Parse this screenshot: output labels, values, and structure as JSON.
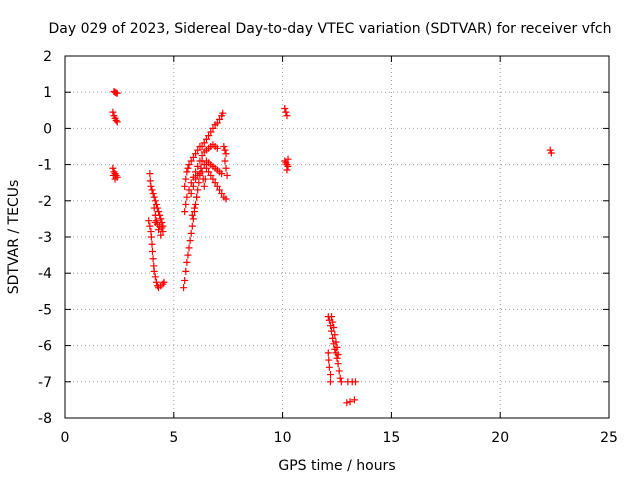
{
  "chart_data": {
    "type": "scatter",
    "title": "Day 029 of 2023, Sidereal Day-to-day VTEC variation (SDTVAR) for receiver vfch",
    "xlabel": "GPS time / hours",
    "ylabel": "SDTVAR / TECUs",
    "xlim": [
      0,
      25
    ],
    "ylim": [
      -8,
      2
    ],
    "xticks": [
      "0",
      "5",
      "10",
      "15",
      "20",
      "25"
    ],
    "yticks": [
      "2",
      "1",
      "0",
      "-1",
      "-2",
      "-3",
      "-4",
      "-5",
      "-6",
      "-7",
      "-8"
    ],
    "grid": true,
    "marker": "+",
    "color": "#ff0000",
    "series": [
      {
        "points": [
          [
            2.25,
            1.02
          ],
          [
            2.3,
            1.0
          ],
          [
            2.35,
            0.98
          ],
          [
            2.4,
            0.97
          ],
          [
            2.2,
            0.45
          ],
          [
            2.25,
            0.35
          ],
          [
            2.3,
            0.28
          ],
          [
            2.35,
            0.22
          ],
          [
            2.4,
            0.18
          ],
          [
            2.2,
            -1.1
          ],
          [
            2.25,
            -1.2
          ],
          [
            2.3,
            -1.25
          ],
          [
            2.35,
            -1.3
          ],
          [
            2.4,
            -1.35
          ],
          [
            2.3,
            -1.4
          ],
          [
            2.22,
            -1.3
          ],
          [
            3.9,
            -1.25
          ],
          [
            3.92,
            -1.45
          ],
          [
            3.95,
            -1.6
          ],
          [
            4.0,
            -1.7
          ],
          [
            4.05,
            -1.8
          ],
          [
            4.1,
            -1.9
          ],
          [
            4.15,
            -2.0
          ],
          [
            4.2,
            -2.1
          ],
          [
            4.25,
            -2.2
          ],
          [
            4.3,
            -2.3
          ],
          [
            4.35,
            -2.4
          ],
          [
            4.4,
            -2.5
          ],
          [
            4.45,
            -2.6
          ],
          [
            4.5,
            -2.7
          ],
          [
            4.45,
            -2.75
          ],
          [
            4.35,
            -2.7
          ],
          [
            4.25,
            -2.65
          ],
          [
            4.15,
            -2.6
          ],
          [
            3.85,
            -2.55
          ],
          [
            3.9,
            -2.7
          ],
          [
            3.95,
            -2.85
          ],
          [
            3.97,
            -3.0
          ],
          [
            4.0,
            -3.2
          ],
          [
            4.02,
            -3.4
          ],
          [
            4.05,
            -3.6
          ],
          [
            4.08,
            -3.8
          ],
          [
            4.1,
            -3.95
          ],
          [
            4.15,
            -4.1
          ],
          [
            4.2,
            -4.25
          ],
          [
            4.25,
            -4.35
          ],
          [
            4.3,
            -4.4
          ],
          [
            4.4,
            -4.35
          ],
          [
            4.5,
            -4.3
          ],
          [
            4.55,
            -4.25
          ],
          [
            4.1,
            -2.2
          ],
          [
            4.15,
            -2.4
          ],
          [
            4.2,
            -2.55
          ],
          [
            4.3,
            -2.8
          ],
          [
            4.4,
            -2.95
          ],
          [
            4.5,
            -2.85
          ],
          [
            5.45,
            -4.4
          ],
          [
            5.5,
            -4.2
          ],
          [
            5.55,
            -3.95
          ],
          [
            5.6,
            -3.7
          ],
          [
            5.65,
            -3.5
          ],
          [
            5.7,
            -3.3
          ],
          [
            5.75,
            -3.1
          ],
          [
            5.8,
            -2.9
          ],
          [
            5.85,
            -2.7
          ],
          [
            5.9,
            -2.5
          ],
          [
            5.95,
            -2.3
          ],
          [
            6.0,
            -2.1
          ],
          [
            6.05,
            -1.9
          ],
          [
            6.1,
            -1.7
          ],
          [
            6.15,
            -1.5
          ],
          [
            6.2,
            -1.3
          ],
          [
            6.25,
            -1.1
          ],
          [
            6.3,
            -0.9
          ],
          [
            5.5,
            -1.6
          ],
          [
            5.55,
            -1.4
          ],
          [
            5.6,
            -1.2
          ],
          [
            5.65,
            -1.1
          ],
          [
            5.7,
            -1.0
          ],
          [
            5.8,
            -0.9
          ],
          [
            5.9,
            -0.8
          ],
          [
            6.0,
            -0.7
          ],
          [
            6.1,
            -0.6
          ],
          [
            6.2,
            -0.5
          ],
          [
            5.5,
            -2.3
          ],
          [
            5.55,
            -2.1
          ],
          [
            5.6,
            -1.9
          ],
          [
            5.7,
            -1.7
          ],
          [
            5.8,
            -1.5
          ],
          [
            5.9,
            -1.35
          ],
          [
            6.0,
            -1.2
          ],
          [
            6.1,
            -1.05
          ],
          [
            6.3,
            -0.5
          ],
          [
            6.4,
            -0.4
          ],
          [
            6.5,
            -0.3
          ],
          [
            6.6,
            -0.2
          ],
          [
            6.7,
            -0.1
          ],
          [
            6.8,
            0.0
          ],
          [
            6.9,
            0.1
          ],
          [
            7.0,
            0.15
          ],
          [
            7.1,
            0.25
          ],
          [
            7.2,
            0.35
          ],
          [
            7.25,
            0.42
          ],
          [
            6.2,
            -0.9
          ],
          [
            6.3,
            -0.75
          ],
          [
            6.4,
            -0.65
          ],
          [
            6.5,
            -0.6
          ],
          [
            6.6,
            -0.55
          ],
          [
            6.7,
            -0.5
          ],
          [
            6.8,
            -0.45
          ],
          [
            6.9,
            -0.5
          ],
          [
            7.0,
            -0.55
          ],
          [
            6.4,
            -1.0
          ],
          [
            6.5,
            -1.1
          ],
          [
            6.6,
            -1.2
          ],
          [
            6.7,
            -1.3
          ],
          [
            6.8,
            -1.4
          ],
          [
            6.9,
            -1.5
          ],
          [
            7.0,
            -1.6
          ],
          [
            7.1,
            -1.7
          ],
          [
            7.2,
            -1.8
          ],
          [
            7.3,
            -1.9
          ],
          [
            7.4,
            -1.95
          ],
          [
            6.5,
            -0.9
          ],
          [
            6.6,
            -0.95
          ],
          [
            6.7,
            -1.0
          ],
          [
            6.8,
            -1.05
          ],
          [
            6.9,
            -1.1
          ],
          [
            7.0,
            -1.15
          ],
          [
            7.1,
            -1.2
          ],
          [
            7.2,
            -1.25
          ],
          [
            6.3,
            -1.2
          ],
          [
            6.35,
            -1.4
          ],
          [
            6.4,
            -1.6
          ],
          [
            6.45,
            -1.4
          ],
          [
            7.3,
            -0.5
          ],
          [
            7.35,
            -0.6
          ],
          [
            7.4,
            -0.7
          ],
          [
            7.35,
            -0.9
          ],
          [
            7.4,
            -1.1
          ],
          [
            7.45,
            -1.3
          ],
          [
            5.8,
            -1.8
          ],
          [
            5.9,
            -1.6
          ],
          [
            6.0,
            -1.4
          ],
          [
            6.1,
            -1.3
          ],
          [
            6.2,
            -1.25
          ],
          [
            6.05,
            -1.9
          ],
          [
            5.95,
            -2.2
          ],
          [
            5.85,
            -2.4
          ],
          [
            10.1,
            0.55
          ],
          [
            10.15,
            0.45
          ],
          [
            10.2,
            0.35
          ],
          [
            10.1,
            -0.9
          ],
          [
            10.15,
            -0.95
          ],
          [
            10.2,
            -1.0
          ],
          [
            10.25,
            -1.05
          ],
          [
            10.2,
            -1.15
          ],
          [
            10.25,
            -0.85
          ],
          [
            12.1,
            -5.2
          ],
          [
            12.15,
            -5.3
          ],
          [
            12.2,
            -5.45
          ],
          [
            12.25,
            -5.6
          ],
          [
            12.3,
            -5.8
          ],
          [
            12.35,
            -5.95
          ],
          [
            12.4,
            -6.1
          ],
          [
            12.45,
            -6.2
          ],
          [
            12.5,
            -6.35
          ],
          [
            12.55,
            -6.5
          ],
          [
            12.6,
            -6.7
          ],
          [
            12.65,
            -6.9
          ],
          [
            12.7,
            -7.0
          ],
          [
            12.1,
            -6.2
          ],
          [
            12.12,
            -6.4
          ],
          [
            12.15,
            -6.6
          ],
          [
            12.2,
            -6.8
          ],
          [
            12.2,
            -7.0
          ],
          [
            12.25,
            -5.2
          ],
          [
            12.3,
            -5.35
          ],
          [
            12.35,
            -5.5
          ],
          [
            12.4,
            -5.7
          ],
          [
            12.45,
            -5.9
          ],
          [
            12.5,
            -6.05
          ],
          [
            12.55,
            -6.25
          ],
          [
            13.0,
            -7.0
          ],
          [
            13.2,
            -7.0
          ],
          [
            13.35,
            -7.0
          ],
          [
            12.95,
            -7.58
          ],
          [
            13.1,
            -7.55
          ],
          [
            13.3,
            -7.5
          ],
          [
            22.3,
            -0.6
          ],
          [
            22.35,
            -0.68
          ]
        ]
      }
    ]
  }
}
